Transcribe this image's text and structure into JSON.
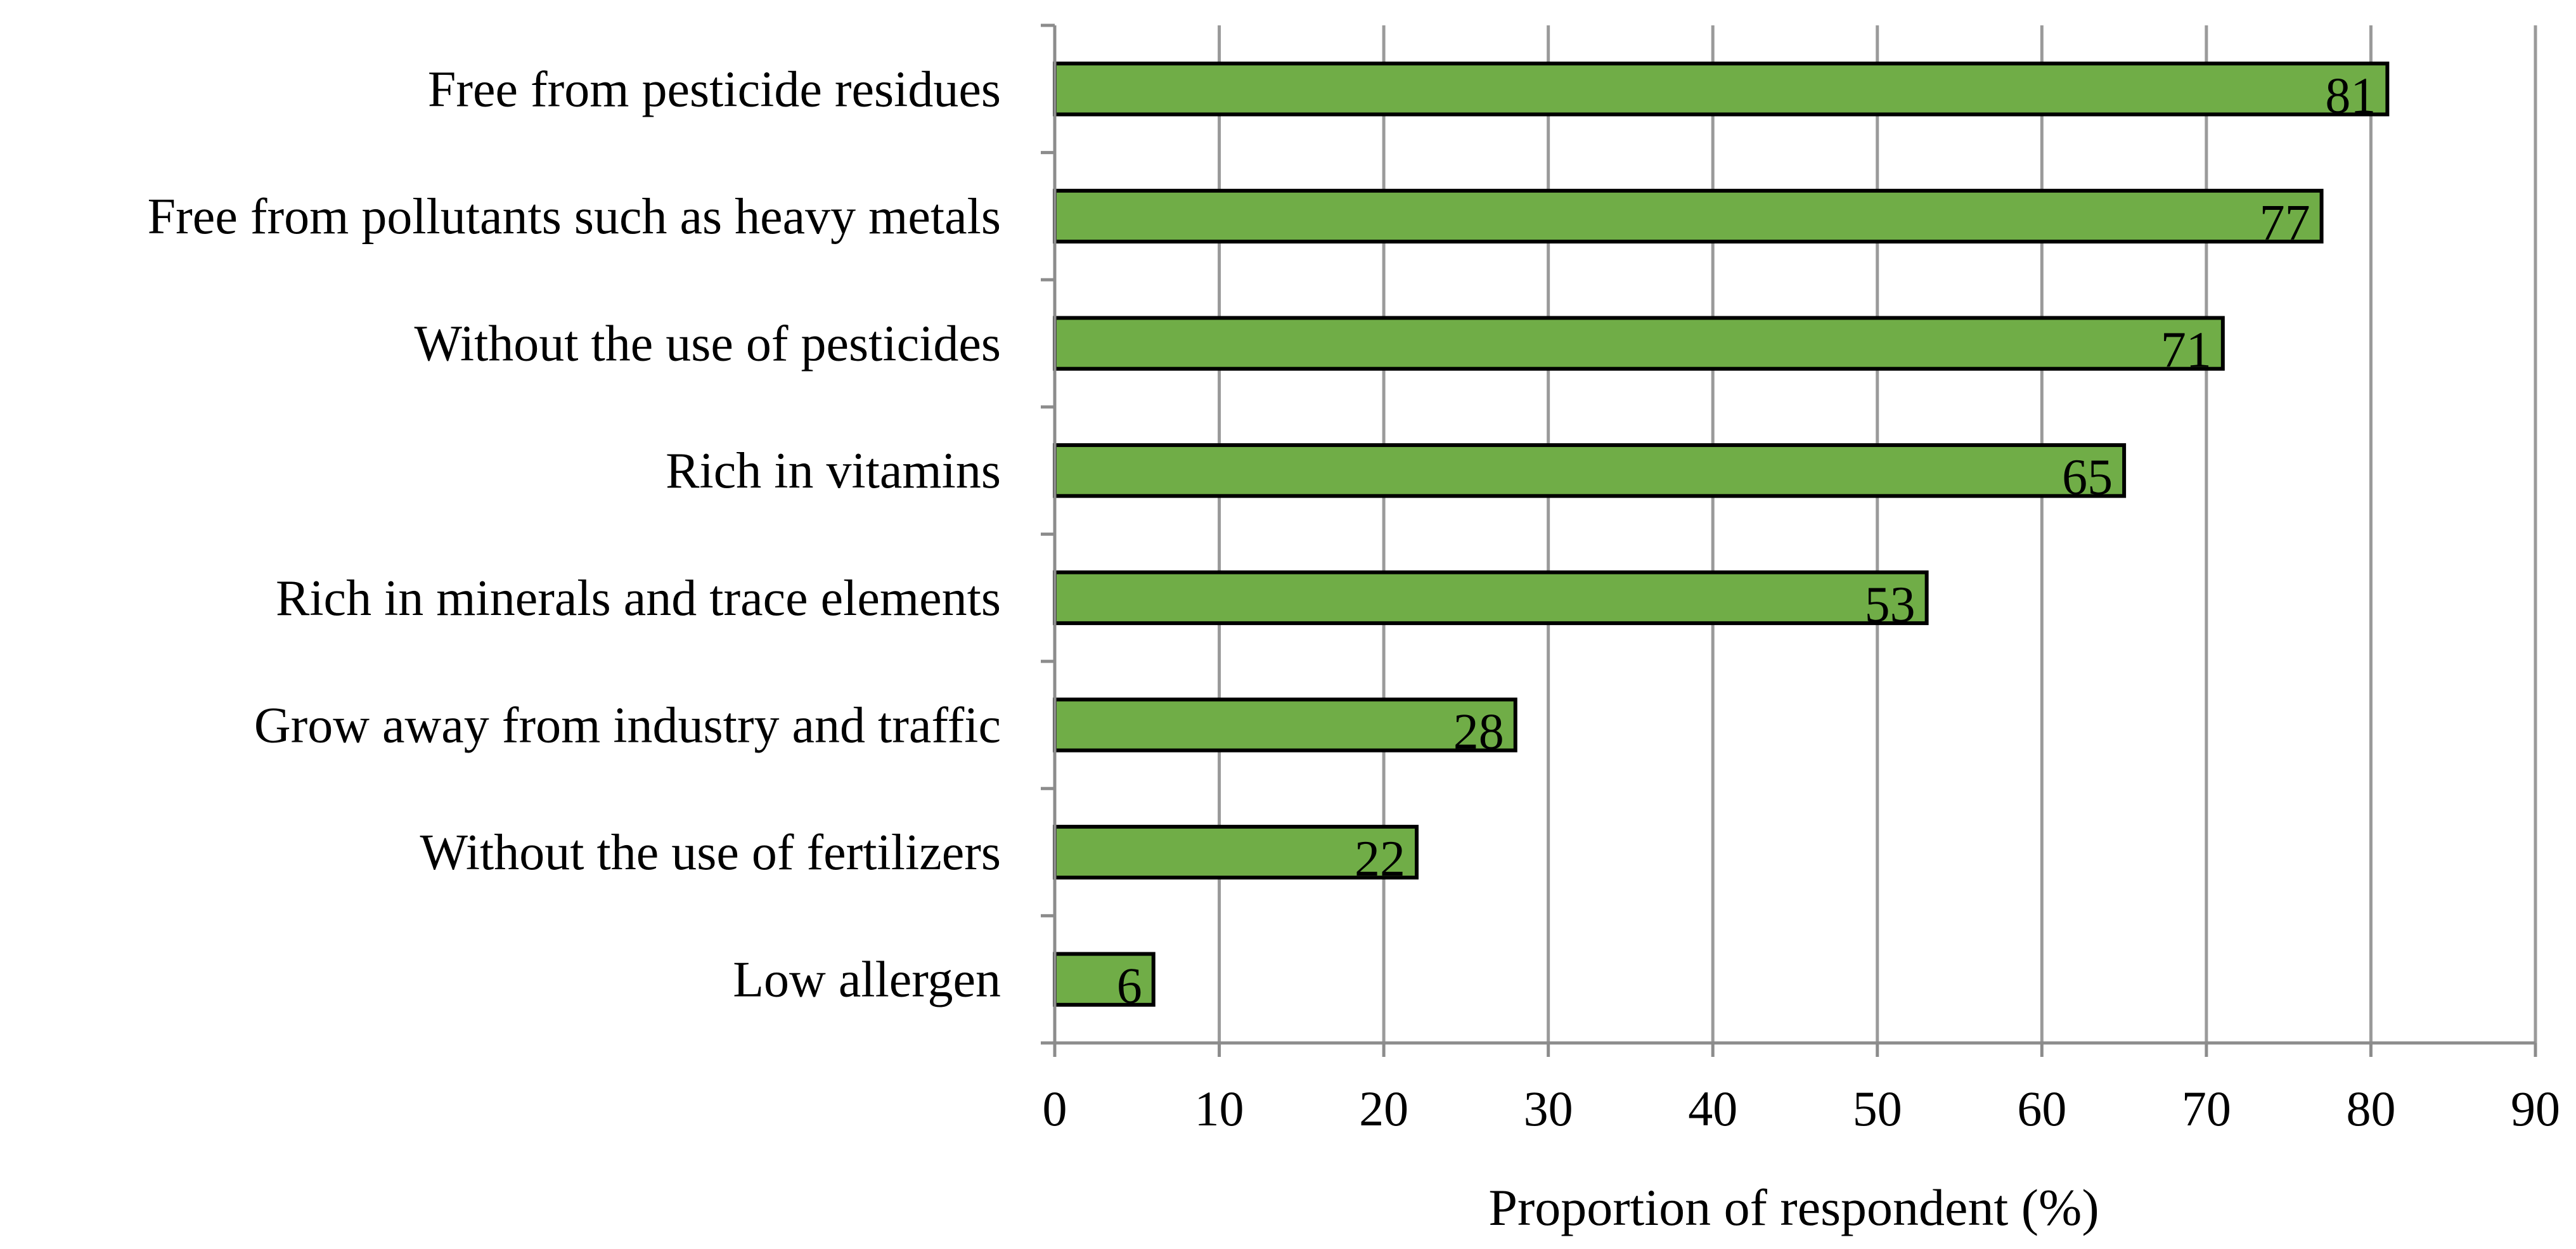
{
  "chart_data": {
    "type": "bar",
    "orientation": "horizontal",
    "categories": [
      "Free from pesticide residues",
      "Free from pollutants such as heavy metals",
      "Without the use of pesticides",
      "Rich in vitamins",
      "Rich in minerals and trace elements",
      "Grow away from industry and traffic",
      "Without the use of fertilizers",
      "Low allergen"
    ],
    "values": [
      81,
      77,
      71,
      65,
      53,
      28,
      22,
      6
    ],
    "data_labels": [
      "81",
      "77",
      "71",
      "65",
      "53",
      "28",
      "22",
      "6"
    ],
    "title": "",
    "xlabel": "Proportion of respondent (%)",
    "ylabel": "",
    "xlim": [
      0,
      90
    ],
    "xticks": [
      0,
      10,
      20,
      30,
      40,
      50,
      60,
      70,
      80,
      90
    ],
    "grid": "vertical",
    "legend": "none",
    "bar_color": "#70ad47",
    "bar_edge_color": "#000000",
    "grid_color": "#9a9a9a"
  }
}
